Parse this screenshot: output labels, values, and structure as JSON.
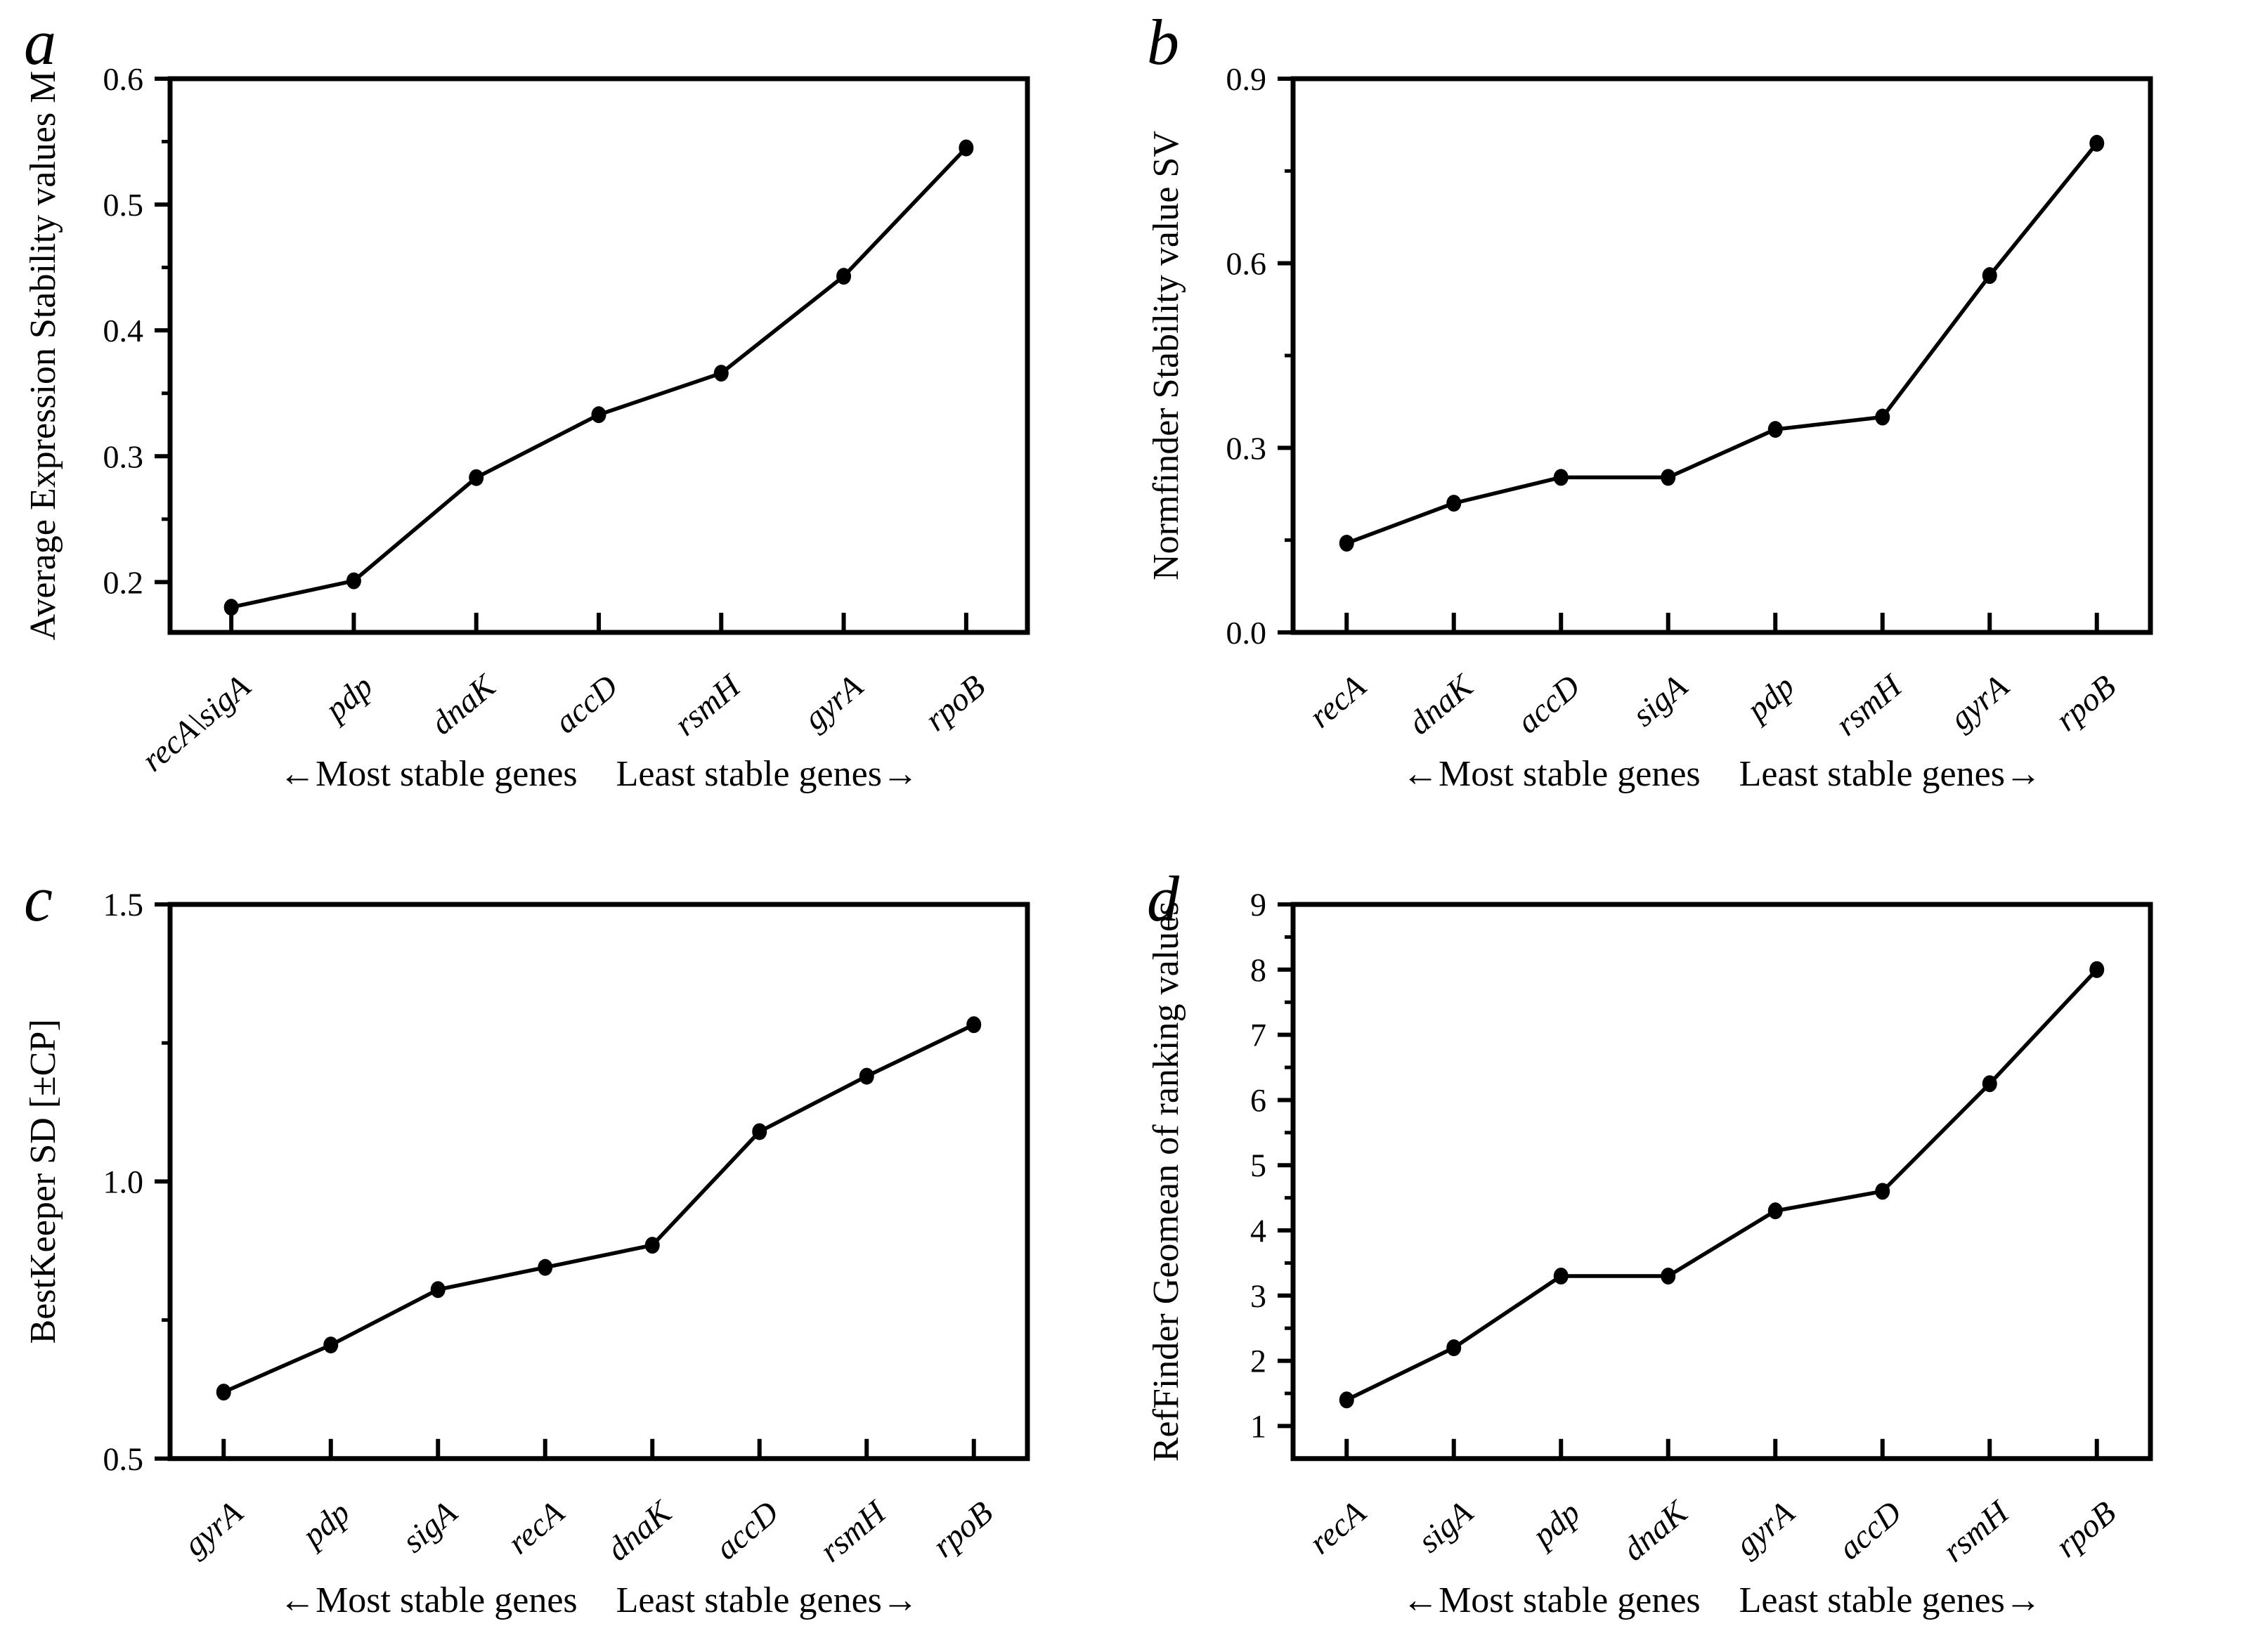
{
  "figure": {
    "background_color": "#ffffff",
    "ink_color": "#000000",
    "panel_letters": [
      "a",
      "b",
      "c",
      "d"
    ]
  },
  "chart_data": [
    {
      "panel_label": "a",
      "type": "line",
      "title": "",
      "ylabel": "Average Expression Stability values M",
      "xlabel_left": "←Most stable genes",
      "xlabel_right": "Least stable genes→",
      "categories": [
        "recA\\sigA",
        "pdp",
        "dnaK",
        "accD",
        "rsmH",
        "gyrA",
        "rpoB"
      ],
      "values": [
        0.18,
        0.201,
        0.283,
        0.333,
        0.366,
        0.443,
        0.545
      ],
      "ylim": [
        0.16,
        0.6
      ],
      "yticks": [
        0.2,
        0.3,
        0.4,
        0.5,
        0.6
      ],
      "minor_step": 0.05,
      "decimals": 1,
      "grid": false,
      "legend": "none",
      "marker": "filled-circle",
      "line_color": "#000000"
    },
    {
      "panel_label": "b",
      "type": "line",
      "title": "",
      "ylabel": "Normfinder Stability value SV",
      "xlabel_left": "←Most stable genes",
      "xlabel_right": "Least stable genes→",
      "categories": [
        "recA",
        "dnaK",
        "accD",
        "sigA",
        "pdp",
        "rsmH",
        "gyrA",
        "rpoB"
      ],
      "values": [
        0.145,
        0.21,
        0.252,
        0.252,
        0.33,
        0.35,
        0.58,
        0.795
      ],
      "ylim": [
        0.0,
        0.9
      ],
      "yticks": [
        0.0,
        0.3,
        0.6,
        0.9
      ],
      "minor_step": 0.15,
      "decimals": 1,
      "grid": false,
      "legend": "none",
      "marker": "filled-circle",
      "line_color": "#000000"
    },
    {
      "panel_label": "c",
      "type": "line",
      "title": "",
      "ylabel": "BestKeeper SD [±CP]",
      "xlabel_left": "←Most stable genes",
      "xlabel_right": "Least stable genes→",
      "categories": [
        "gyrA",
        "pdp",
        "sigA",
        "recA",
        "dnaK",
        "accD",
        "rsmH",
        "rpoB"
      ],
      "values": [
        0.62,
        0.705,
        0.805,
        0.845,
        0.885,
        1.09,
        1.19,
        1.283
      ],
      "ylim": [
        0.5,
        1.5
      ],
      "yticks": [
        0.5,
        1.0,
        1.5
      ],
      "minor_step": 0.25,
      "decimals": 1,
      "grid": false,
      "legend": "none",
      "marker": "filled-circle",
      "line_color": "#000000"
    },
    {
      "panel_label": "d",
      "type": "line",
      "title": "",
      "ylabel": "RefFinder Geomean of ranking values",
      "xlabel_left": "←Most stable genes",
      "xlabel_right": "Least stable genes→",
      "categories": [
        "recA",
        "sigA",
        "pdp",
        "dnaK",
        "gyrA",
        "accD",
        "rsmH",
        "rpoB"
      ],
      "values": [
        1.4,
        2.2,
        3.3,
        3.3,
        4.3,
        4.6,
        6.25,
        8.0
      ],
      "ylim": [
        0.5,
        9
      ],
      "yticks": [
        1,
        2,
        3,
        4,
        5,
        6,
        7,
        8,
        9
      ],
      "minor_step": 0.5,
      "decimals": 0,
      "grid": false,
      "legend": "none",
      "marker": "filled-circle",
      "line_color": "#000000"
    }
  ]
}
